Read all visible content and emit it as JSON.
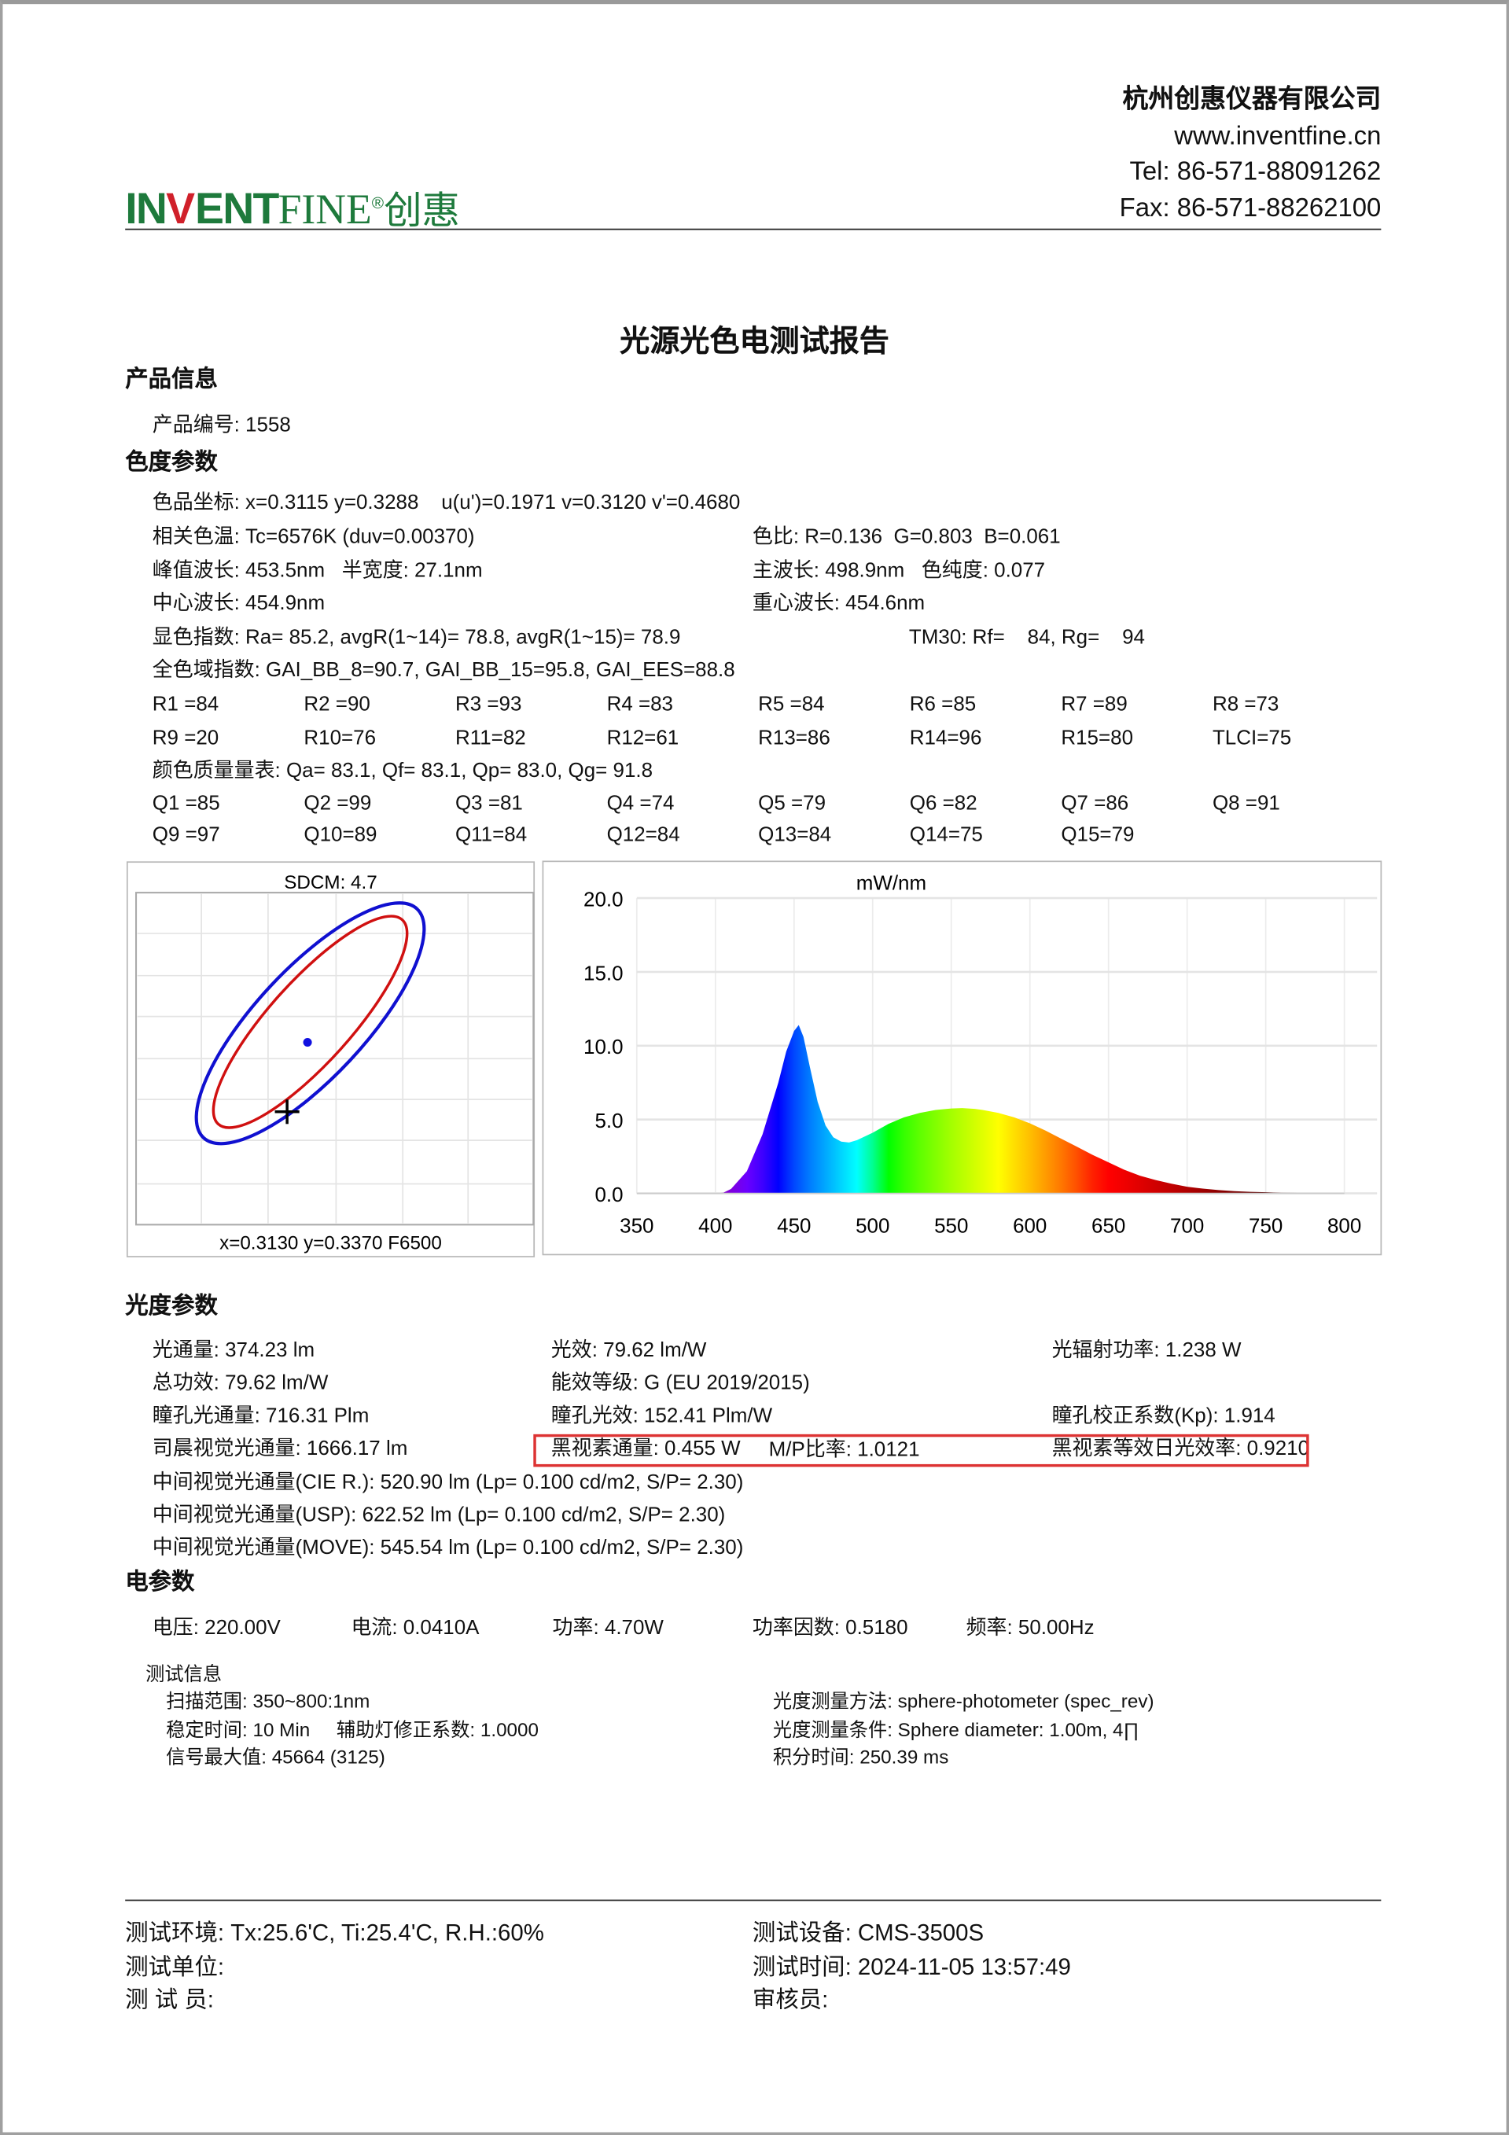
{
  "header": {
    "logo": {
      "brand_bold": "INVENT",
      "brand_light": "FINE",
      "registered": "®",
      "cn": "创惠",
      "colors": {
        "green": "#1e7a3c",
        "red": "#d0202a"
      }
    },
    "company": "杭州创惠仪器有限公司",
    "website": "www.inventfine.cn",
    "tel": "Tel: 86-571-88091262",
    "fax": "Fax: 86-571-88262100"
  },
  "title": "光源光色电测试报告",
  "product": {
    "heading": "产品信息",
    "code": "产品编号: 1558"
  },
  "color": {
    "heading": "色度参数",
    "coords": "色品坐标: x=0.3115 y=0.3288    u(u')=0.1971 v=0.3120 v'=0.4680",
    "cct": "相关色温: Tc=6576K (duv=0.00370)",
    "ratio": "色比: R=0.136  G=0.803  B=0.061",
    "peak": "峰值波长: 453.5nm   半宽度: 27.1nm",
    "dominant": "主波长: 498.9nm   色纯度: 0.077",
    "center": "中心波长: 454.9nm",
    "centroid": "重心波长: 454.6nm",
    "cri": "显色指数: Ra= 85.2, avgR(1~14)= 78.8, avgR(1~15)= 78.9",
    "tm30": "TM30: Rf=    84, Rg=    94",
    "gai": "全色域指数: GAI_BB_8=90.7, GAI_BB_15=95.8, GAI_EES=88.8",
    "r_row1": [
      "R1 =84",
      "R2 =90",
      "R3 =93",
      "R4 =83",
      "R5 =84",
      "R6 =85",
      "R7 =89",
      "R8 =73"
    ],
    "r_row2": [
      "R9 =20",
      "R10=76",
      "R11=82",
      "R12=61",
      "R13=86",
      "R14=96",
      "R15=80",
      "TLCI=75"
    ],
    "cqs": "颜色质量量表: Qa= 83.1, Qf= 83.1, Qp= 83.0, Qg= 91.8",
    "q_row1": [
      "Q1 =85",
      "Q2 =99",
      "Q3 =81",
      "Q4 =74",
      "Q5 =79",
      "Q6 =82",
      "Q7 =86",
      "Q8 =91"
    ],
    "q_row2": [
      "Q9 =97",
      "Q10=89",
      "Q11=84",
      "Q12=84",
      "Q13=84",
      "Q14=75",
      "Q15=79"
    ]
  },
  "sdcm": {
    "title": "SDCM:   4.7",
    "footer": "x=0.3130 y=0.3370 F6500",
    "colors": {
      "outer": "#1010d0",
      "inner": "#d01010",
      "point": "#1010e0"
    }
  },
  "chart_data": {
    "type": "area",
    "title": "mW/nm",
    "xlabel": "",
    "ylabel": "",
    "xlim": [
      350,
      800
    ],
    "ylim": [
      0,
      20
    ],
    "xticks": [
      "350",
      "400",
      "450",
      "500",
      "550",
      "600",
      "650",
      "700",
      "750",
      "800"
    ],
    "yticks": [
      "0.0",
      "5.0",
      "10.0",
      "15.0",
      "20.0"
    ],
    "grid": true,
    "fill": "spectral-colors",
    "x": [
      350,
      400,
      405,
      410,
      420,
      430,
      440,
      445,
      450,
      453,
      456,
      460,
      465,
      470,
      475,
      480,
      485,
      490,
      500,
      510,
      520,
      530,
      540,
      550,
      557,
      565,
      570,
      580,
      590,
      600,
      610,
      620,
      630,
      640,
      650,
      660,
      670,
      680,
      690,
      700,
      710,
      720,
      730,
      740,
      750,
      760,
      780,
      800
    ],
    "y": [
      0,
      0,
      0.05,
      0.3,
      1.5,
      4.0,
      7.5,
      9.6,
      11.0,
      11.4,
      10.6,
      8.6,
      6.2,
      4.6,
      3.8,
      3.5,
      3.45,
      3.6,
      4.1,
      4.7,
      5.15,
      5.45,
      5.65,
      5.75,
      5.78,
      5.72,
      5.65,
      5.45,
      5.15,
      4.75,
      4.25,
      3.7,
      3.15,
      2.6,
      2.1,
      1.6,
      1.2,
      0.9,
      0.65,
      0.45,
      0.32,
      0.22,
      0.15,
      0.1,
      0.07,
      0.04,
      0.02,
      0
    ]
  },
  "photometric": {
    "heading": "光度参数",
    "rows": [
      [
        "光通量: 374.23 lm",
        "光效: 79.62 lm/W",
        "光辐射功率: 1.238 W"
      ],
      [
        "总功效: 79.62 lm/W",
        "能效等级: G (EU 2019/2015)",
        ""
      ],
      [
        "瞳孔光通量: 716.31 Plm",
        "瞳孔光效: 152.41 Plm/W",
        "瞳孔校正系数(Kp): 1.914"
      ],
      [
        "司晨视觉光通量: 1666.17 lm",
        "黑视素通量: 0.455 W",
        "黑视素等效日光效率: 0.9210"
      ]
    ],
    "mp_ratio": "M/P比率: 1.0121",
    "mesopic": [
      "中间视觉光通量(CIE R.): 520.90 lm (Lp= 0.100 cd/m2, S/P= 2.30)",
      "中间视觉光通量(USP): 622.52 lm (Lp= 0.100 cd/m2, S/P= 2.30)",
      "中间视觉光通量(MOVE): 545.54 lm (Lp= 0.100 cd/m2, S/P= 2.30)"
    ],
    "highlight_color": "#dd3333"
  },
  "electrical": {
    "heading": "电参数",
    "items": [
      "电压: 220.00V",
      "电流: 0.0410A",
      "功率: 4.70W",
      "功率因数: 0.5180",
      "频率: 50.00Hz"
    ]
  },
  "test_info": {
    "heading": "测试信息",
    "left": [
      "扫描范围: 350~800:1nm",
      "稳定时间: 10 Min     辅助灯修正系数: 1.0000",
      "信号最大值: 45664 (3125)"
    ],
    "right": [
      "光度测量方法: sphere-photometer (spec_rev)",
      "光度测量条件: Sphere diameter: 1.00m, 4∏",
      "积分时间: 250.39 ms"
    ]
  },
  "footer": {
    "left": [
      "测试环境: Tx:25.6'C, Ti:25.4'C, R.H.:60%",
      "测试单位:",
      "测 试 员:"
    ],
    "right": [
      "测试设备: CMS-3500S",
      "测试时间: 2024-11-05 13:57:49",
      "审核员:"
    ]
  }
}
